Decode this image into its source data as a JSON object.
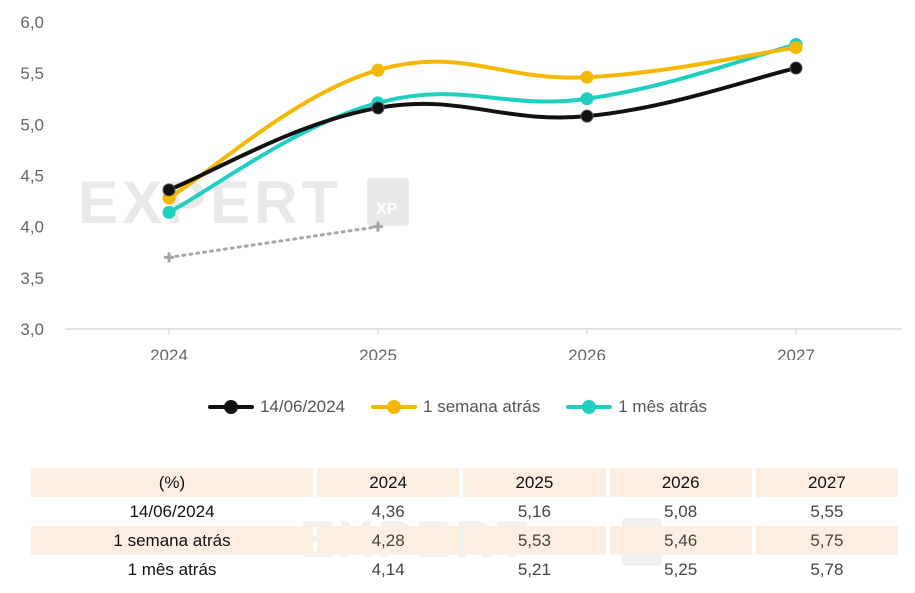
{
  "chart_data": {
    "type": "line",
    "categories": [
      "2024",
      "2025",
      "2026",
      "2027"
    ],
    "ylim": [
      3.0,
      6.0
    ],
    "yticks": [
      "3,0",
      "3,5",
      "4,0",
      "4,5",
      "5,0",
      "5,5",
      "6,0"
    ],
    "series": [
      {
        "name": "14/06/2024",
        "color": "#111111",
        "values": [
          4.36,
          5.16,
          5.08,
          5.55
        ]
      },
      {
        "name": "1 semana atrás",
        "color": "#f5b800",
        "values": [
          4.28,
          5.53,
          5.46,
          5.75
        ]
      },
      {
        "name": "1 mês atrás",
        "color": "#1fcfc0",
        "values": [
          4.14,
          5.21,
          5.25,
          5.78
        ]
      },
      {
        "name": "",
        "color": "#a6a6a6",
        "style": "dotted",
        "values": [
          3.7,
          4.0,
          null,
          null
        ]
      }
    ]
  },
  "table": {
    "header": [
      "(%)",
      "2024",
      "2025",
      "2026",
      "2027"
    ],
    "rows": [
      {
        "label": "14/06/2024",
        "values": [
          "4,36",
          "5,16",
          "5,08",
          "5,55"
        ]
      },
      {
        "label": "1 semana atrás",
        "values": [
          "4,28",
          "5,53",
          "5,46",
          "5,75"
        ]
      },
      {
        "label": "1 mês atrás",
        "values": [
          "4,14",
          "5,21",
          "5,25",
          "5,78"
        ]
      }
    ]
  },
  "watermark": {
    "text": "EXPERT",
    "badge": "XP"
  }
}
